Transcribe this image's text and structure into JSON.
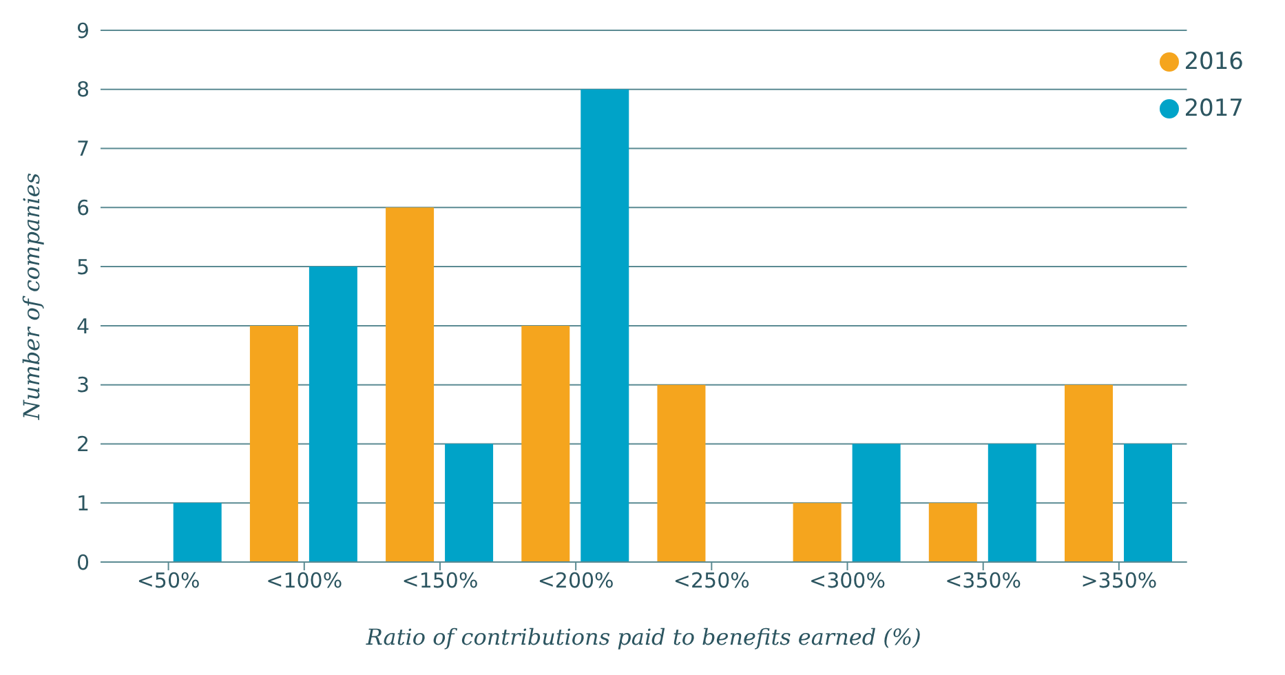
{
  "chart_data": {
    "type": "bar",
    "xlabel": "Ratio of contributions paid to benefits earned (%)",
    "ylabel": "Number of companies",
    "categories": [
      "<50%",
      "<100%",
      "<150%",
      "<200%",
      "<250%",
      "<300%",
      "<350%",
      ">350%"
    ],
    "series": [
      {
        "name": "2016",
        "color": "#f5a51e",
        "values": [
          0,
          4,
          6,
          4,
          3,
          1,
          1,
          3
        ]
      },
      {
        "name": "2017",
        "color": "#00a3c8",
        "values": [
          1,
          5,
          2,
          8,
          0,
          2,
          2,
          2
        ]
      }
    ],
    "ylim": [
      0,
      9
    ],
    "yticks": [
      0,
      1,
      2,
      3,
      4,
      5,
      6,
      7,
      8,
      9
    ],
    "grid": "y",
    "legend": "top right"
  }
}
